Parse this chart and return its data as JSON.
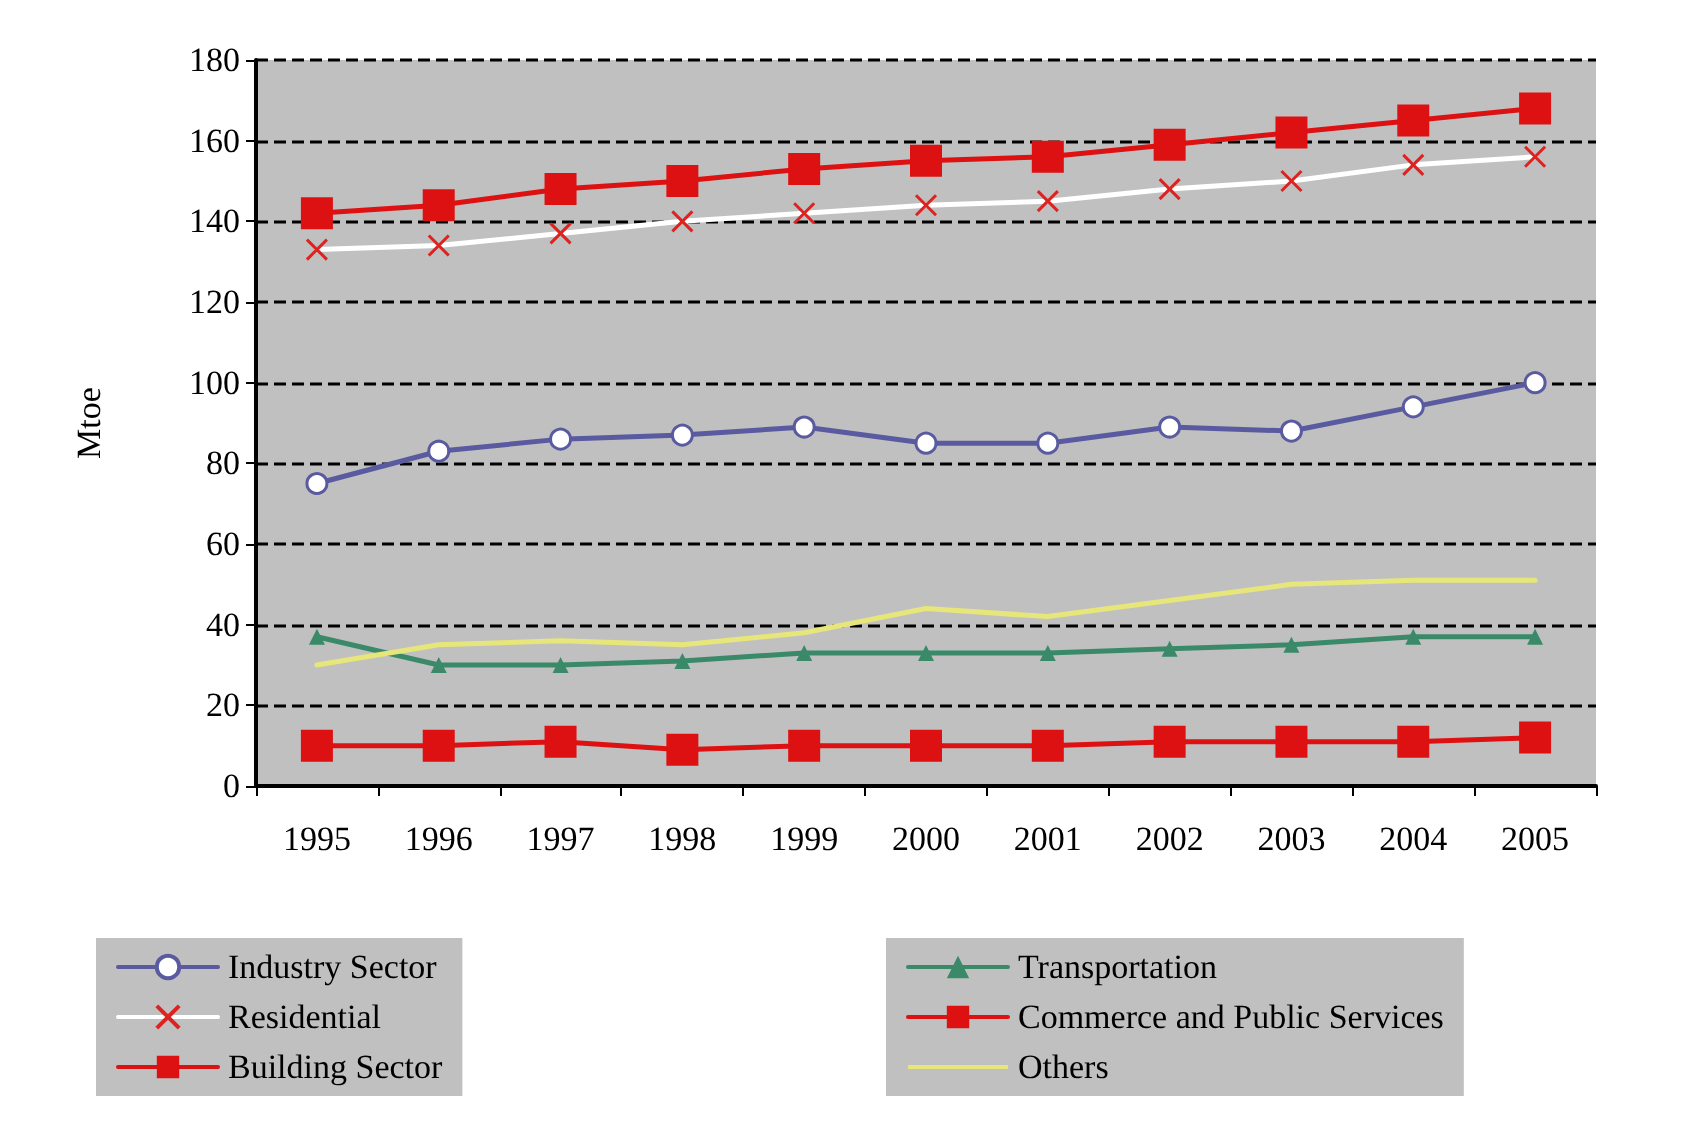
{
  "chart_data": {
    "type": "line",
    "ylabel": "Mtoe",
    "categories": [
      "1995",
      "1996",
      "1997",
      "1998",
      "1999",
      "2000",
      "2001",
      "2002",
      "2003",
      "2004",
      "2005"
    ],
    "ylim": [
      0,
      180
    ],
    "yticks": [
      0,
      20,
      40,
      60,
      80,
      100,
      120,
      140,
      160,
      180
    ],
    "grid": "y",
    "legend": "bottom",
    "series": [
      {
        "name": "Industry Sector",
        "color": "#5a5aa0",
        "marker": "circle",
        "values": [
          75,
          83,
          86,
          87,
          89,
          85,
          85,
          89,
          88,
          94,
          100
        ]
      },
      {
        "name": "Transportation",
        "color": "#3a8a6a",
        "marker": "triangle",
        "values": [
          37,
          30,
          30,
          31,
          33,
          33,
          33,
          34,
          35,
          37,
          37
        ]
      },
      {
        "name": "Residential",
        "color": "#ffffff",
        "marker": "cross",
        "values": [
          133,
          134,
          137,
          140,
          142,
          144,
          145,
          148,
          150,
          154,
          156
        ]
      },
      {
        "name": "Commerce and Public Services",
        "color": "#dd1111",
        "marker": "square",
        "values": [
          10,
          10,
          11,
          9,
          10,
          10,
          10,
          11,
          11,
          11,
          12
        ]
      },
      {
        "name": "Building Sector",
        "color": "#dd1111",
        "marker": "square",
        "values": [
          142,
          144,
          148,
          150,
          153,
          155,
          156,
          159,
          162,
          165,
          168
        ]
      },
      {
        "name": "Others",
        "color": "#e6e67a",
        "marker": "none",
        "values": [
          30,
          35,
          36,
          35,
          38,
          44,
          42,
          46,
          50,
          51,
          51
        ]
      }
    ]
  }
}
